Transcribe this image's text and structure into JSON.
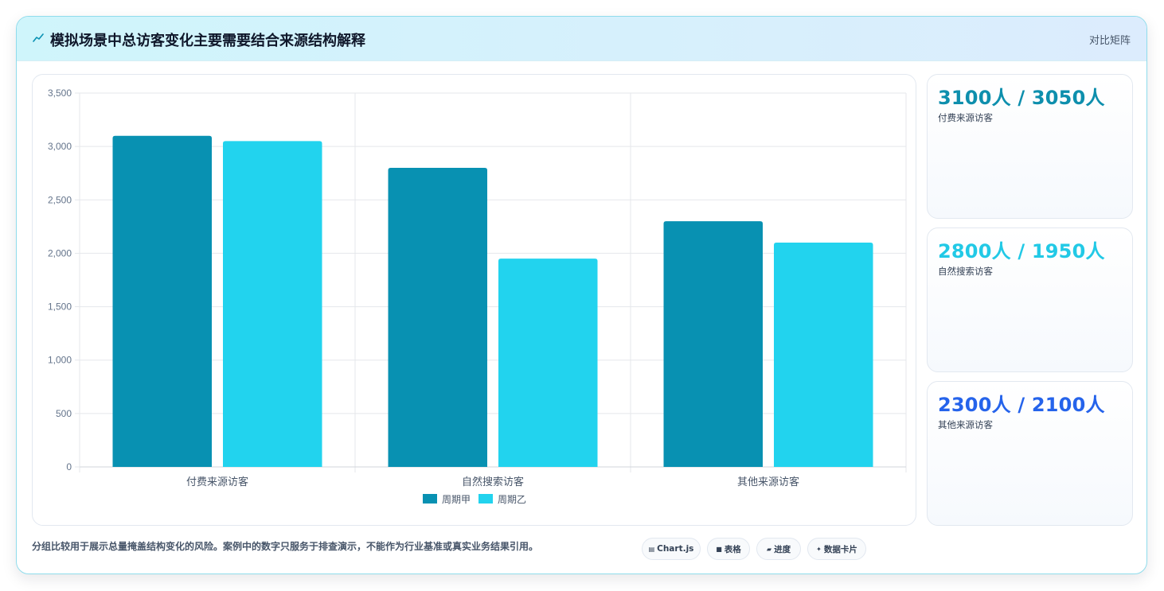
{
  "panel": {
    "title": "模拟场景中总访客变化主要需要结合来源结构解释",
    "tag": "对比矩阵"
  },
  "colors": {
    "series_a": "#0891b2",
    "series_b": "#22d3ee",
    "stat_1": "#0e8fad",
    "stat_2": "#22c9e6",
    "stat_3": "#2563eb"
  },
  "chart_data": {
    "type": "bar",
    "categories": [
      "付费来源访客",
      "自然搜索访客",
      "其他来源访客"
    ],
    "series": [
      {
        "name": "周期甲",
        "values": [
          3100,
          2800,
          2300
        ]
      },
      {
        "name": "周期乙",
        "values": [
          3050,
          1950,
          2100
        ]
      }
    ],
    "ylim": [
      0,
      3500
    ],
    "yticks": [
      0,
      500,
      1000,
      1500,
      2000,
      2500,
      3000,
      3500
    ],
    "ytick_labels": [
      "0",
      "500",
      "1,000",
      "1,500",
      "2,000",
      "2,500",
      "3,000",
      "3,500"
    ],
    "grid": true,
    "legend": "bottom"
  },
  "stats": [
    {
      "value": "3100人 / 3050人",
      "label": "付费来源访客"
    },
    {
      "value": "2800人 / 1950人",
      "label": "自然搜索访客"
    },
    {
      "value": "2300人 / 2100人",
      "label": "其他来源访客"
    }
  ],
  "footer": {
    "note": "分组比较用于展示总量掩盖结构变化的风险。案例中的数字只服务于排查演示，不能作为行业基准或真实业务结果引用。"
  },
  "chips": [
    {
      "icon": "chart-icon",
      "glyph": "▤",
      "label": "Chart.js"
    },
    {
      "icon": "table-icon",
      "glyph": "■",
      "label": "表格"
    },
    {
      "icon": "progress-icon",
      "glyph": "▰",
      "label": "进度"
    },
    {
      "icon": "sparkle-icon",
      "glyph": "✦",
      "label": "数据卡片"
    }
  ]
}
